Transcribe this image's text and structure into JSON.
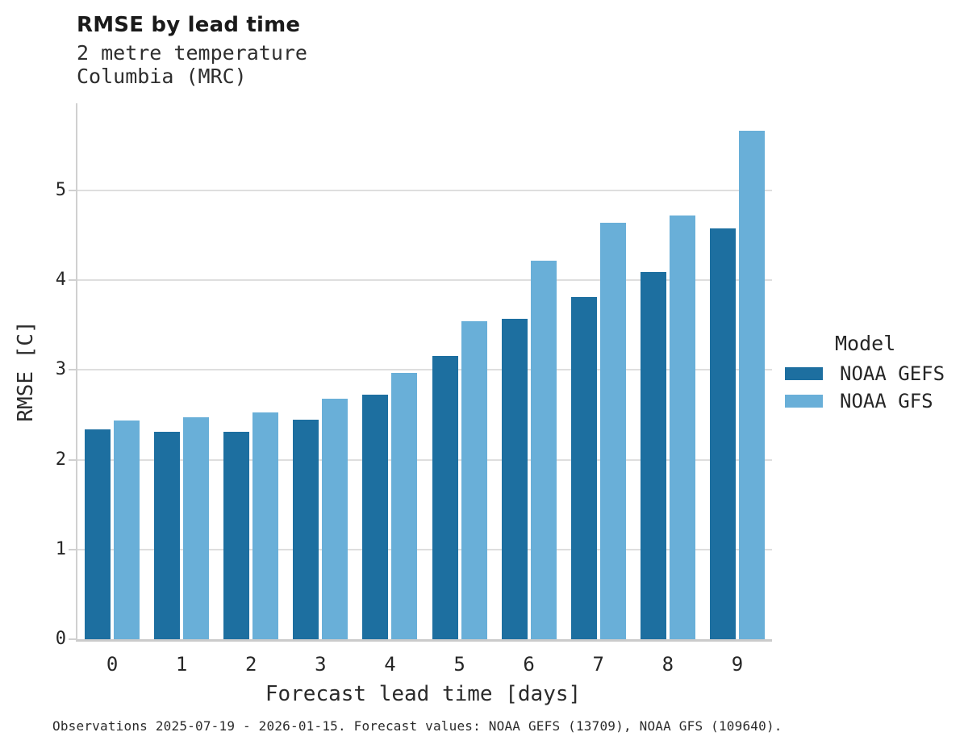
{
  "header": {
    "title": "RMSE by lead time",
    "subtitle": "2 metre temperature\nColumbia (MRC)"
  },
  "chart_data": {
    "type": "bar",
    "title": "RMSE by lead time",
    "subtitle_lines": [
      "2 metre temperature",
      "Columbia (MRC)"
    ],
    "categories": [
      "0",
      "1",
      "2",
      "3",
      "4",
      "5",
      "6",
      "7",
      "8",
      "9"
    ],
    "series": [
      {
        "name": "NOAA GEFS",
        "color": "#1d6fa0",
        "values": [
          2.34,
          2.31,
          2.31,
          2.45,
          2.72,
          3.16,
          3.57,
          3.81,
          4.09,
          4.58
        ]
      },
      {
        "name": "NOAA GFS",
        "color": "#69afd8",
        "values": [
          2.44,
          2.47,
          2.53,
          2.68,
          2.97,
          3.54,
          4.22,
          4.64,
          4.72,
          5.66
        ]
      }
    ],
    "xlabel": "Forecast lead time [days]",
    "ylabel": "RMSE [C]",
    "ylim": [
      0,
      5.97
    ],
    "yticks": [
      0,
      1,
      2,
      3,
      4,
      5
    ],
    "grid": "horizontal",
    "legend_title": "Model",
    "legend_position": "right-of-plot"
  },
  "legend": {
    "title": "Model",
    "items": [
      {
        "label": "NOAA GEFS",
        "color": "#1d6fa0"
      },
      {
        "label": "NOAA GFS",
        "color": "#69afd8"
      }
    ]
  },
  "caption": "Observations 2025-07-19 - 2026-01-15. Forecast values: NOAA GEFS (13709), NOAA GFS (109640).",
  "colors": {
    "grid": "#dedede",
    "axis": "#cbcbcb",
    "text": "#262626",
    "title": "#1a1a1a"
  }
}
